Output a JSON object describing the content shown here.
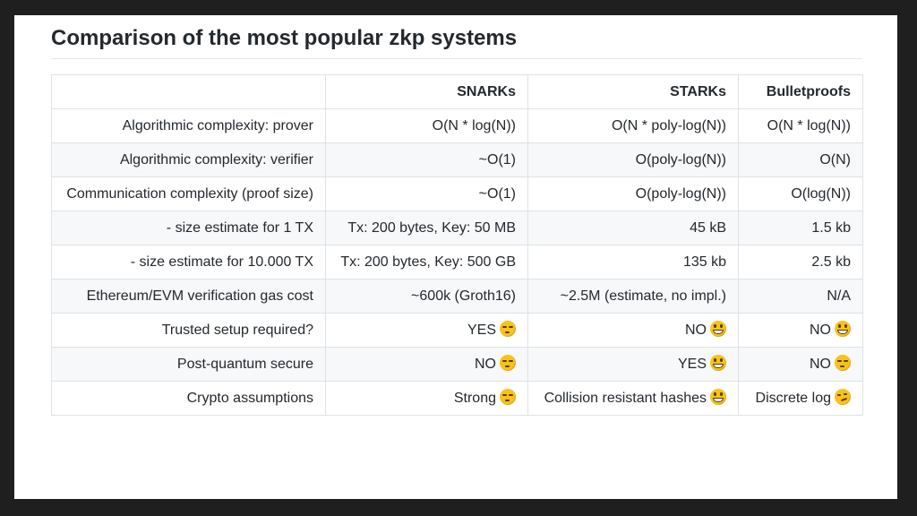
{
  "title": "Comparison of the most popular zkp systems",
  "table": {
    "headers": [
      "",
      "SNARKs",
      "STARKs",
      "Bulletproofs"
    ],
    "rows": [
      {
        "label": "Algorithmic complexity: prover",
        "cells": [
          {
            "text": "O(N * log(N))"
          },
          {
            "text": "O(N * poly-log(N))"
          },
          {
            "text": "O(N * log(N))"
          }
        ]
      },
      {
        "label": "Algorithmic complexity: verifier",
        "cells": [
          {
            "text": "~O(1)"
          },
          {
            "text": "O(poly-log(N))"
          },
          {
            "text": "O(N)"
          }
        ]
      },
      {
        "label": "Communication complexity (proof size)",
        "cells": [
          {
            "text": "~O(1)"
          },
          {
            "text": "O(poly-log(N))"
          },
          {
            "text": "O(log(N))"
          }
        ]
      },
      {
        "label": "- size estimate for 1 TX",
        "cells": [
          {
            "text": "Tx: 200 bytes, Key: 50 MB"
          },
          {
            "text": "45 kB"
          },
          {
            "text": "1.5 kb"
          }
        ]
      },
      {
        "label": "- size estimate for 10.000 TX",
        "cells": [
          {
            "text": "Tx: 200 bytes, Key: 500 GB"
          },
          {
            "text": "135 kb"
          },
          {
            "text": "2.5 kb"
          }
        ]
      },
      {
        "label": "Ethereum/EVM verification gas cost",
        "cells": [
          {
            "text": "~600k (Groth16)"
          },
          {
            "text": "~2.5M (estimate, no impl.)"
          },
          {
            "text": "N/A"
          }
        ]
      },
      {
        "label": "Trusted setup required?",
        "cells": [
          {
            "text": "YES",
            "emoji": "unamused-face-icon"
          },
          {
            "text": "NO",
            "emoji": "grinning-face-icon"
          },
          {
            "text": "NO",
            "emoji": "grinning-face-icon"
          }
        ]
      },
      {
        "label": "Post-quantum secure",
        "cells": [
          {
            "text": "NO",
            "emoji": "unamused-face-icon"
          },
          {
            "text": "YES",
            "emoji": "grinning-face-icon"
          },
          {
            "text": "NO",
            "emoji": "unamused-face-icon"
          }
        ]
      },
      {
        "label": "Crypto assumptions",
        "cells": [
          {
            "text": "Strong",
            "emoji": "unamused-face-icon"
          },
          {
            "text": "Collision resistant hashes",
            "emoji": "grinning-face-icon"
          },
          {
            "text": "Discrete log",
            "emoji": "smirking-face-icon"
          }
        ]
      }
    ]
  },
  "colors": {
    "emoji_yellow": "#f7c31a",
    "stripe": "#f6f8fa",
    "border": "#dfe2e5"
  }
}
